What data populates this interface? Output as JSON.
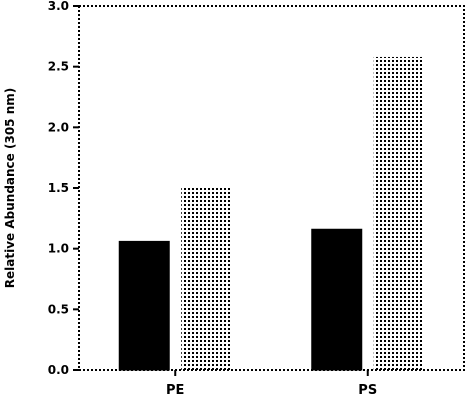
{
  "chart_data": {
    "type": "bar",
    "title": "",
    "xlabel": "",
    "ylabel": "Relative Abundance (305 nm)",
    "categories": [
      "PE",
      "PS"
    ],
    "series": [
      {
        "values": [
          1.06,
          1.16
        ],
        "style": "solid",
        "color": "#000000"
      },
      {
        "values": [
          1.5,
          2.58
        ],
        "style": "dotted",
        "color": "#000000"
      }
    ],
    "ylim": [
      0.0,
      3.0
    ],
    "yticks": [
      "0.0",
      "0.5",
      "1.0",
      "1.5",
      "2.0",
      "2.5",
      "3.0"
    ],
    "grid": false,
    "legend": "none",
    "frame": "dotted"
  }
}
